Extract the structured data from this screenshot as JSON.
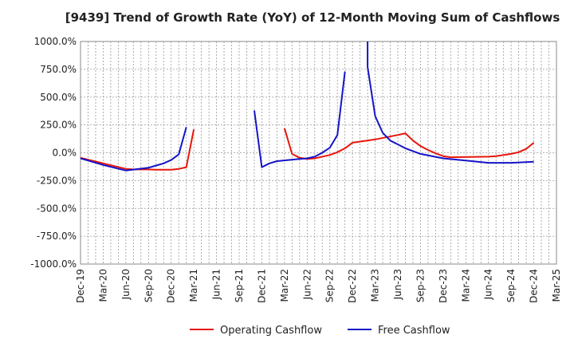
{
  "chart_data": {
    "type": "line",
    "title": "[9439]  Trend of Growth Rate (YoY) of 12-Month Moving Sum of Cashflows",
    "xlabel": "",
    "ylabel": "",
    "ylim": [
      -1000,
      1000
    ],
    "yticks": [
      1000,
      750,
      500,
      250,
      0,
      -250,
      -500,
      -750,
      -1000
    ],
    "ytick_labels": [
      "1000.0%",
      "750.0%",
      "500.0%",
      "250.0%",
      "0.0%",
      "-250.0%",
      "-500.0%",
      "-750.0%",
      "-1000.0%"
    ],
    "xlim": [
      "2019-12",
      "2025-03"
    ],
    "xtick_labels": [
      "Dec-19",
      "Mar-20",
      "Jun-20",
      "Sep-20",
      "Dec-20",
      "Mar-21",
      "Jun-21",
      "Sep-21",
      "Dec-21",
      "Mar-22",
      "Jun-22",
      "Sep-22",
      "Dec-22",
      "Mar-23",
      "Jun-23",
      "Sep-23",
      "Dec-23",
      "Mar-24",
      "Jun-24",
      "Sep-24",
      "Dec-24",
      "Mar-25"
    ],
    "grid": true,
    "legend_position": "bottom",
    "series": [
      {
        "name": "Operating Cashflow",
        "color": "#e8160c",
        "points": [
          [
            "2019-12",
            -45
          ],
          [
            "2020-03",
            -95
          ],
          [
            "2020-06",
            -145
          ],
          [
            "2020-07",
            -150
          ],
          [
            "2020-09",
            -150
          ],
          [
            "2020-10",
            -152
          ],
          [
            "2020-12",
            -152
          ],
          [
            "2021-01",
            -145
          ],
          [
            "2021-02",
            -130
          ],
          [
            "2021-03",
            210
          ],
          null,
          [
            "2022-03",
            220
          ],
          [
            "2022-04",
            -10
          ],
          [
            "2022-05",
            -45
          ],
          [
            "2022-06",
            -55
          ],
          [
            "2022-07",
            -50
          ],
          [
            "2022-09",
            -20
          ],
          [
            "2022-10",
            5
          ],
          [
            "2022-11",
            40
          ],
          [
            "2022-12",
            90
          ],
          [
            "2023-03",
            120
          ],
          [
            "2023-06",
            160
          ],
          [
            "2023-07",
            175
          ],
          [
            "2023-08",
            110
          ],
          [
            "2023-09",
            60
          ],
          [
            "2023-10",
            25
          ],
          [
            "2023-11",
            -5
          ],
          [
            "2023-12",
            -30
          ],
          [
            "2024-01",
            -40
          ],
          [
            "2024-06",
            -35
          ],
          [
            "2024-07",
            -30
          ],
          [
            "2024-09",
            -10
          ],
          [
            "2024-10",
            5
          ],
          [
            "2024-11",
            35
          ],
          [
            "2024-12",
            90
          ]
        ]
      },
      {
        "name": "Free Cashflow",
        "color": "#1414c8",
        "points": [
          [
            "2019-12",
            -50
          ],
          [
            "2020-03",
            -110
          ],
          [
            "2020-06",
            -160
          ],
          [
            "2020-09",
            -135
          ],
          [
            "2020-10",
            -115
          ],
          [
            "2020-11",
            -95
          ],
          [
            "2020-12",
            -65
          ],
          [
            "2021-01",
            -15
          ],
          [
            "2021-02",
            230
          ],
          null,
          [
            "2021-11",
            380
          ],
          [
            "2021-12",
            -130
          ],
          [
            "2022-01",
            -95
          ],
          [
            "2022-02",
            -75
          ],
          [
            "2022-05",
            -55
          ],
          [
            "2022-06",
            -50
          ],
          [
            "2022-07",
            -35
          ],
          [
            "2022-08",
            0
          ],
          [
            "2022-09",
            45
          ],
          [
            "2022-10",
            160
          ],
          [
            "2022-11",
            730
          ],
          null,
          [
            "2023-02",
            1000
          ],
          [
            "2023-02",
            770
          ],
          [
            "2023-03",
            330
          ],
          [
            "2023-04",
            180
          ],
          [
            "2023-05",
            110
          ],
          [
            "2023-06",
            75
          ],
          [
            "2023-07",
            40
          ],
          [
            "2023-09",
            -10
          ],
          [
            "2023-12",
            -50
          ],
          [
            "2024-03",
            -70
          ],
          [
            "2024-06",
            -90
          ],
          [
            "2024-09",
            -90
          ],
          [
            "2024-12",
            -80
          ]
        ]
      }
    ]
  }
}
